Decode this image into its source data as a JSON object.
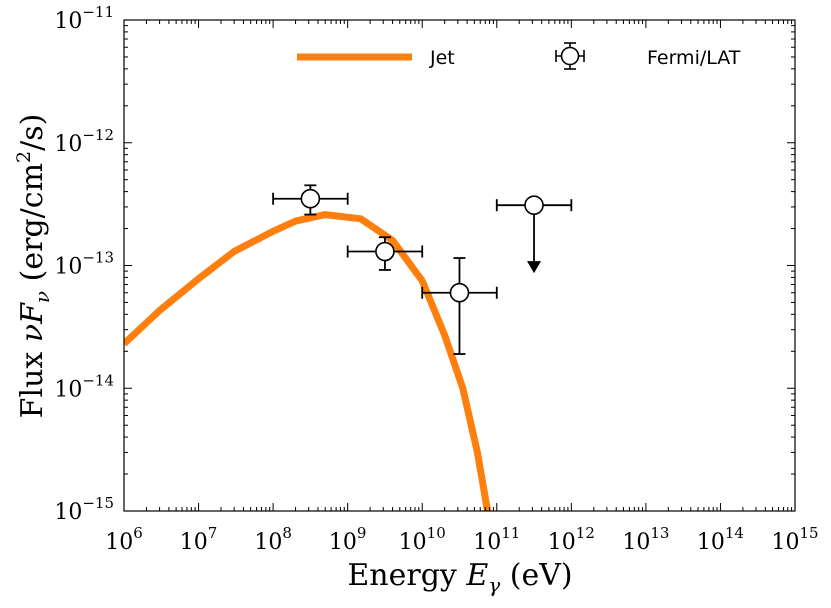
{
  "chart_data": {
    "type": "line",
    "xscale": "log",
    "yscale": "log",
    "xlim": [
      1000000.0,
      1000000000000000.0
    ],
    "ylim": [
      1e-15,
      1e-11
    ],
    "xlabel": "Energy",
    "xlabel_symbol": "E",
    "xlabel_sub": "γ",
    "xlabel_unit": "(eV)",
    "ylabel": "Flux",
    "ylabel_symbol": "νF",
    "ylabel_sub": "ν",
    "ylabel_unit_pre": "(erg/cm",
    "ylabel_unit_sup": "2",
    "ylabel_unit_post": "/s)",
    "x_tick_exponents": [
      6,
      7,
      8,
      9,
      10,
      11,
      12,
      13,
      14,
      15
    ],
    "y_tick_exponents": [
      -15,
      -14,
      -13,
      -12,
      -11
    ],
    "tick_base": "10",
    "legend_position": "top",
    "series": [
      {
        "name": "Jet",
        "kind": "line",
        "color": "#ff7f0e",
        "x": [
          1000000.0,
          3000000.0,
          10000000.0,
          30000000.0,
          100000000.0,
          200000000.0,
          500000000.0,
          1500000000.0,
          4000000000.0,
          10000000000.0,
          20000000000.0,
          35000000000.0,
          55000000000.0,
          80000000000.0
        ],
        "y": [
          2.3e-14,
          4.3e-14,
          7.8e-14,
          1.3e-13,
          1.9e-13,
          2.3e-13,
          2.6e-13,
          2.4e-13,
          1.6e-13,
          7.5e-14,
          2.7e-14,
          1e-14,
          3e-15,
          8e-16
        ]
      },
      {
        "name": "Fermi/LAT",
        "kind": "errorbar",
        "color": "#000000",
        "points": [
          {
            "x": 316000000.0,
            "y": 3.5e-13,
            "xlo": 100000000.0,
            "xhi": 1000000000.0,
            "ylo": 2.6e-13,
            "yhi": 4.5e-13,
            "upper_limit": false
          },
          {
            "x": 3160000000.0,
            "y": 1.3e-13,
            "xlo": 1000000000.0,
            "xhi": 10000000000.0,
            "ylo": 9.2e-14,
            "yhi": 1.7e-13,
            "upper_limit": false
          },
          {
            "x": 31600000000.0,
            "y": 6e-14,
            "xlo": 10000000000.0,
            "xhi": 100000000000.0,
            "ylo": 1.9e-14,
            "yhi": 1.15e-13,
            "upper_limit": false
          },
          {
            "x": 316000000000.0,
            "y": 3.1e-13,
            "xlo": 100000000000.0,
            "xhi": 1000000000000.0,
            "ylo": 9e-14,
            "yhi": 3.1e-13,
            "upper_limit": true
          }
        ]
      }
    ]
  }
}
